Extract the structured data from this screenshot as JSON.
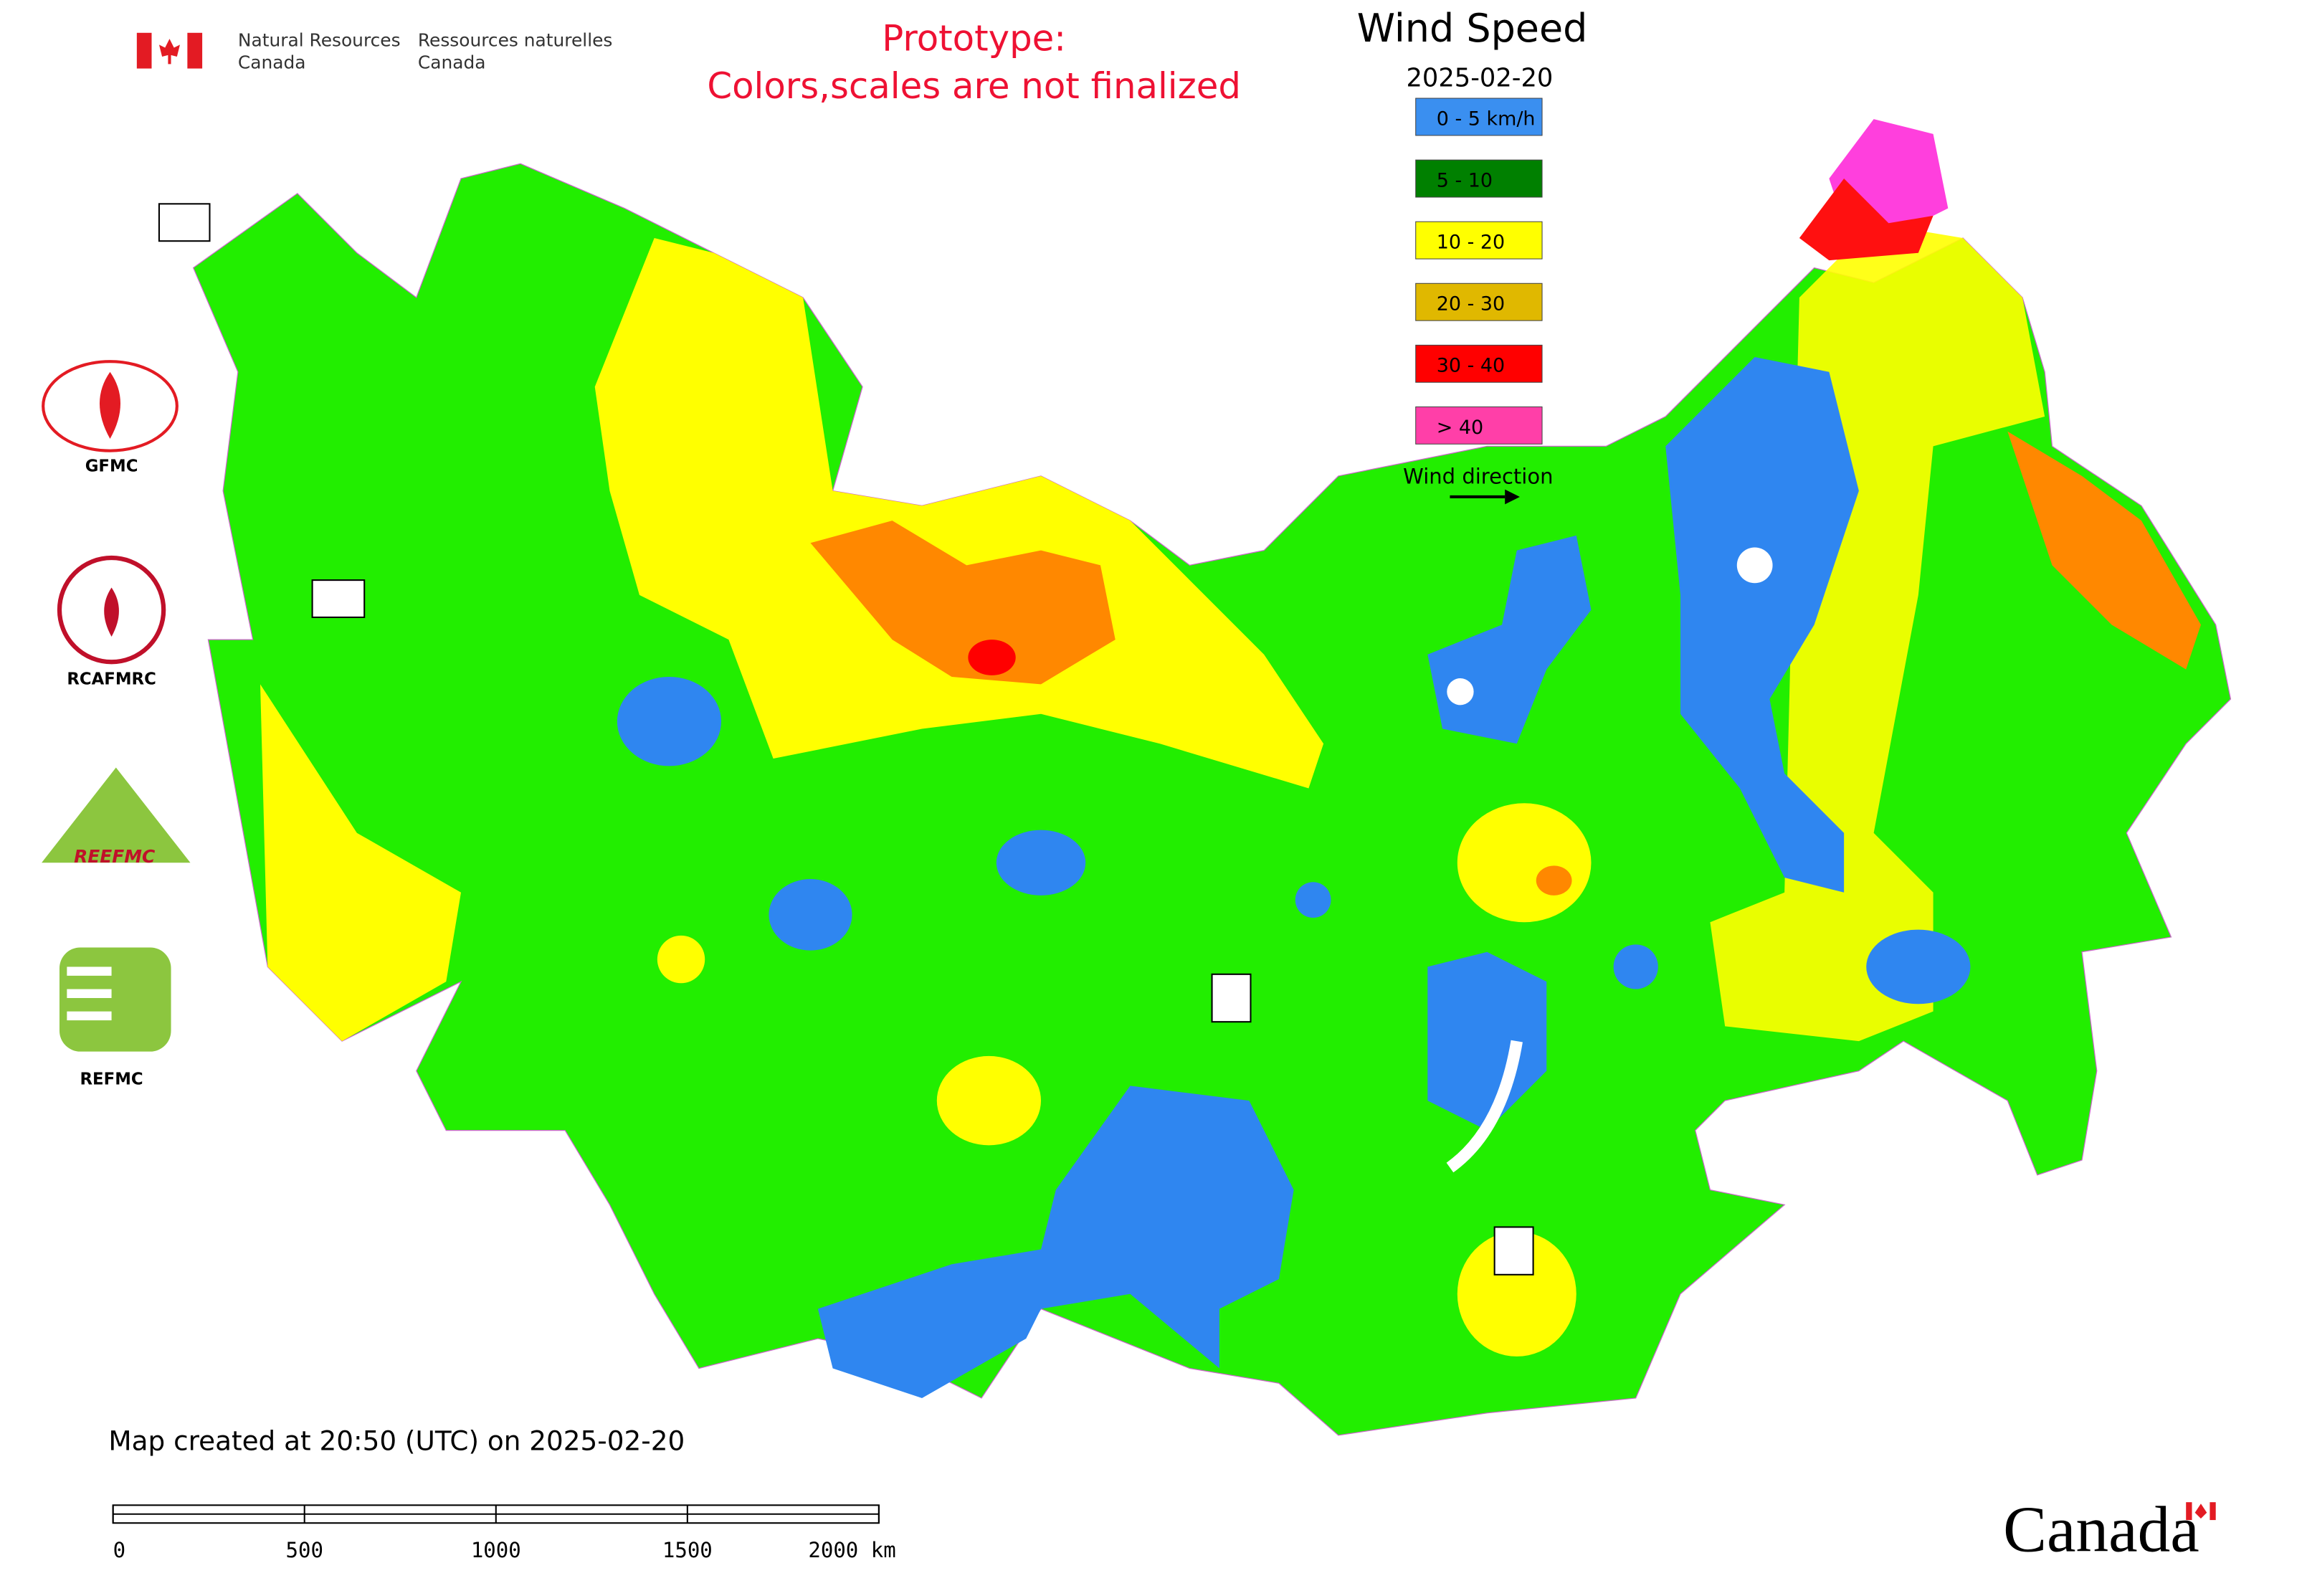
{
  "header": {
    "agency_en": [
      "Natural Resources",
      "Canada"
    ],
    "agency_fr": [
      "Ressources naturelles",
      "Canada"
    ],
    "notice": [
      "Prototype:",
      "Colors,scales are not finalized"
    ]
  },
  "legend": {
    "title": "Wind Speed",
    "date": "2025-02-20",
    "items": [
      {
        "label": "0 - 5 km/h",
        "color": "#3a8ff0"
      },
      {
        "label": "5 - 10",
        "color": "#008000"
      },
      {
        "label": "10 - 20",
        "color": "#ffff00"
      },
      {
        "label": "20 - 30",
        "color": "#e0b800"
      },
      {
        "label": "30 - 40",
        "color": "#ff0000"
      },
      {
        "label": "> 40",
        "color": "#ff3fa8"
      }
    ],
    "wind_direction": "Wind direction"
  },
  "logos": {
    "captions": [
      "GFMC",
      "RCAFMRC",
      "REFMC"
    ],
    "reefmc_mark": "REEFMC"
  },
  "footer": {
    "created": "Map created at 20:50 (UTC) on 2025-02-20",
    "scale_labels": [
      "0",
      "500",
      "1000",
      "1500",
      "2000 km"
    ],
    "wordmark": "Canada"
  }
}
